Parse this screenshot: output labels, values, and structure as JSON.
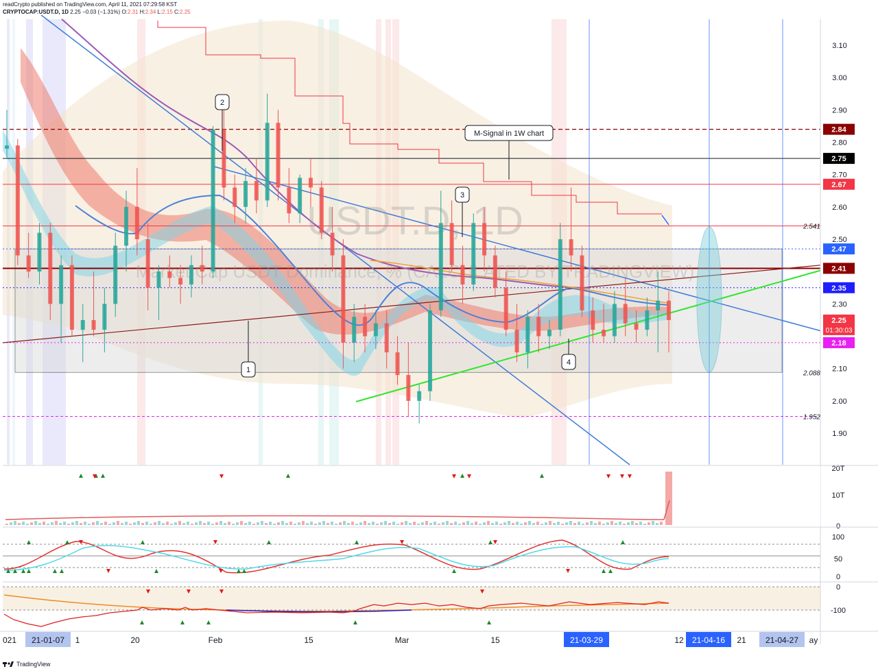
{
  "header": {
    "line1": "readCrypto published on TradingView.com, April 11, 2021 07:29:58 KST",
    "symbol": "CRYPTOCAP:USDT.D, 1D",
    "last": "2.25",
    "change": "−0.03 (−1.31%)",
    "o_label": "O:",
    "o_val": "2.31",
    "h_label": "H:",
    "h_val": "2.34",
    "l_label": "L:",
    "l_val": "2.15",
    "c_label": "C:",
    "c_val": "2.25"
  },
  "watermark": {
    "symbol": "USDT.D, 1D",
    "description": "Market Cap USDT Dominance, % (CALCULATED BY TRADINGVIEW)"
  },
  "chart_data": {
    "type": "candlestick",
    "price_axis": {
      "ticks": [
        "3.10",
        "3.00",
        "2.90",
        "2.80",
        "2.70",
        "2.60",
        "2.50",
        "2.30",
        "2.10",
        "2.00",
        "1.90"
      ],
      "ylim": [
        1.82,
        3.18
      ]
    },
    "price_labels": [
      {
        "text": "2.84",
        "value": 2.84,
        "color": "#8b0000"
      },
      {
        "text": "2.75",
        "value": 2.75,
        "color": "#000000"
      },
      {
        "text": "2.67",
        "value": 2.67,
        "color": "#f23645"
      },
      {
        "text": "2.47",
        "value": 2.47,
        "color": "#2962ff"
      },
      {
        "text": "2.41",
        "value": 2.41,
        "color": "#8b0000"
      },
      {
        "text": "2.35",
        "value": 2.35,
        "color": "#1e1eff"
      },
      {
        "text": "2.25",
        "value": 2.25,
        "color": "#f23645",
        "sub": "01:30:03"
      },
      {
        "text": "2.18",
        "value": 2.18,
        "color": "#e91ef2"
      }
    ],
    "level_annotations": [
      {
        "text": "2.541",
        "value": 2.541
      },
      {
        "text": "2.088",
        "value": 2.088
      },
      {
        "text": "1.952",
        "value": 1.952
      }
    ],
    "callouts": [
      {
        "text": "1"
      },
      {
        "text": "2"
      },
      {
        "text": "3"
      },
      {
        "text": "4"
      },
      {
        "text": "M-Signal in 1W chart"
      }
    ],
    "time_axis": [
      {
        "text": "021"
      },
      {
        "text": "21-01-07",
        "highlight": true
      },
      {
        "text": "1"
      },
      {
        "text": "20"
      },
      {
        "text": "Feb"
      },
      {
        "text": "15"
      },
      {
        "text": "Mar"
      },
      {
        "text": "15"
      },
      {
        "text": "21-03-29",
        "highlight": true
      },
      {
        "text": "12"
      },
      {
        "text": "21-04-16",
        "highlight": true
      },
      {
        "text": "21"
      },
      {
        "text": "21-04-27",
        "highlight": true
      },
      {
        "text": "ay"
      }
    ],
    "candles": [
      {
        "o": 2.78,
        "h": 2.9,
        "l": 2.75,
        "c": 2.79
      },
      {
        "o": 2.79,
        "h": 2.81,
        "l": 2.42,
        "c": 2.45
      },
      {
        "o": 2.45,
        "h": 2.52,
        "l": 2.38,
        "c": 2.4
      },
      {
        "o": 2.4,
        "h": 2.55,
        "l": 2.36,
        "c": 2.52
      },
      {
        "o": 2.52,
        "h": 2.55,
        "l": 2.25,
        "c": 2.3
      },
      {
        "o": 2.3,
        "h": 2.45,
        "l": 2.18,
        "c": 2.42
      },
      {
        "o": 2.42,
        "h": 2.45,
        "l": 2.2,
        "c": 2.22
      },
      {
        "o": 2.22,
        "h": 2.3,
        "l": 2.12,
        "c": 2.25
      },
      {
        "o": 2.25,
        "h": 2.4,
        "l": 2.2,
        "c": 2.22
      },
      {
        "o": 2.22,
        "h": 2.35,
        "l": 2.15,
        "c": 2.3
      },
      {
        "o": 2.3,
        "h": 2.52,
        "l": 2.26,
        "c": 2.48
      },
      {
        "o": 2.48,
        "h": 2.65,
        "l": 2.4,
        "c": 2.6
      },
      {
        "o": 2.6,
        "h": 2.72,
        "l": 2.45,
        "c": 2.5
      },
      {
        "o": 2.5,
        "h": 2.55,
        "l": 2.28,
        "c": 2.35
      },
      {
        "o": 2.35,
        "h": 2.42,
        "l": 2.25,
        "c": 2.4
      },
      {
        "o": 2.4,
        "h": 2.45,
        "l": 2.35,
        "c": 2.38
      },
      {
        "o": 2.38,
        "h": 2.42,
        "l": 2.3,
        "c": 2.36
      },
      {
        "o": 2.36,
        "h": 2.45,
        "l": 2.32,
        "c": 2.42
      },
      {
        "o": 2.42,
        "h": 2.48,
        "l": 2.36,
        "c": 2.4
      },
      {
        "o": 2.4,
        "h": 2.85,
        "l": 2.38,
        "c": 2.84
      },
      {
        "o": 2.84,
        "h": 2.92,
        "l": 2.62,
        "c": 2.66
      },
      {
        "o": 2.66,
        "h": 2.7,
        "l": 2.55,
        "c": 2.6
      },
      {
        "o": 2.6,
        "h": 2.72,
        "l": 2.55,
        "c": 2.68
      },
      {
        "o": 2.68,
        "h": 2.75,
        "l": 2.58,
        "c": 2.62
      },
      {
        "o": 2.62,
        "h": 2.95,
        "l": 2.6,
        "c": 2.86
      },
      {
        "o": 2.86,
        "h": 2.9,
        "l": 2.62,
        "c": 2.66
      },
      {
        "o": 2.66,
        "h": 2.72,
        "l": 2.55,
        "c": 2.58
      },
      {
        "o": 2.58,
        "h": 2.7,
        "l": 2.55,
        "c": 2.69
      },
      {
        "o": 2.69,
        "h": 2.75,
        "l": 2.6,
        "c": 2.66
      },
      {
        "o": 2.66,
        "h": 2.68,
        "l": 2.5,
        "c": 2.52
      },
      {
        "o": 2.52,
        "h": 2.6,
        "l": 2.4,
        "c": 2.45
      },
      {
        "o": 2.45,
        "h": 2.5,
        "l": 2.1,
        "c": 2.18
      },
      {
        "o": 2.18,
        "h": 2.3,
        "l": 2.12,
        "c": 2.26
      },
      {
        "o": 2.26,
        "h": 2.3,
        "l": 2.15,
        "c": 2.2
      },
      {
        "o": 2.2,
        "h": 2.28,
        "l": 2.16,
        "c": 2.24
      },
      {
        "o": 2.24,
        "h": 2.28,
        "l": 2.1,
        "c": 2.15
      },
      {
        "o": 2.15,
        "h": 2.2,
        "l": 2.05,
        "c": 2.08
      },
      {
        "o": 2.08,
        "h": 2.18,
        "l": 1.95,
        "c": 2.0
      },
      {
        "o": 2.0,
        "h": 2.05,
        "l": 1.93,
        "c": 2.03
      },
      {
        "o": 2.03,
        "h": 2.3,
        "l": 2.0,
        "c": 2.28
      },
      {
        "o": 2.28,
        "h": 2.65,
        "l": 2.26,
        "c": 2.55
      },
      {
        "o": 2.55,
        "h": 2.62,
        "l": 2.4,
        "c": 2.42
      },
      {
        "o": 2.42,
        "h": 2.48,
        "l": 2.3,
        "c": 2.36
      },
      {
        "o": 2.36,
        "h": 2.58,
        "l": 2.34,
        "c": 2.55
      },
      {
        "o": 2.55,
        "h": 2.6,
        "l": 2.4,
        "c": 2.45
      },
      {
        "o": 2.45,
        "h": 2.48,
        "l": 2.32,
        "c": 2.35
      },
      {
        "o": 2.35,
        "h": 2.4,
        "l": 2.2,
        "c": 2.22
      },
      {
        "o": 2.22,
        "h": 2.3,
        "l": 2.12,
        "c": 2.15
      },
      {
        "o": 2.15,
        "h": 2.28,
        "l": 2.1,
        "c": 2.26
      },
      {
        "o": 2.26,
        "h": 2.3,
        "l": 2.15,
        "c": 2.2
      },
      {
        "o": 2.2,
        "h": 2.25,
        "l": 2.16,
        "c": 2.22
      },
      {
        "o": 2.22,
        "h": 2.55,
        "l": 2.2,
        "c": 2.5
      },
      {
        "o": 2.5,
        "h": 2.66,
        "l": 2.4,
        "c": 2.45
      },
      {
        "o": 2.45,
        "h": 2.48,
        "l": 2.26,
        "c": 2.28
      },
      {
        "o": 2.28,
        "h": 2.32,
        "l": 2.18,
        "c": 2.22
      },
      {
        "o": 2.22,
        "h": 2.3,
        "l": 2.18,
        "c": 2.2
      },
      {
        "o": 2.2,
        "h": 2.34,
        "l": 2.18,
        "c": 2.3
      },
      {
        "o": 2.3,
        "h": 2.38,
        "l": 2.2,
        "c": 2.24
      },
      {
        "o": 2.24,
        "h": 2.28,
        "l": 2.18,
        "c": 2.22
      },
      {
        "o": 2.22,
        "h": 2.32,
        "l": 2.2,
        "c": 2.28
      },
      {
        "o": 2.28,
        "h": 2.4,
        "l": 2.15,
        "c": 2.31
      },
      {
        "o": 2.31,
        "h": 2.34,
        "l": 2.15,
        "c": 2.25
      }
    ]
  },
  "footer": {
    "brand": "TradingView"
  }
}
